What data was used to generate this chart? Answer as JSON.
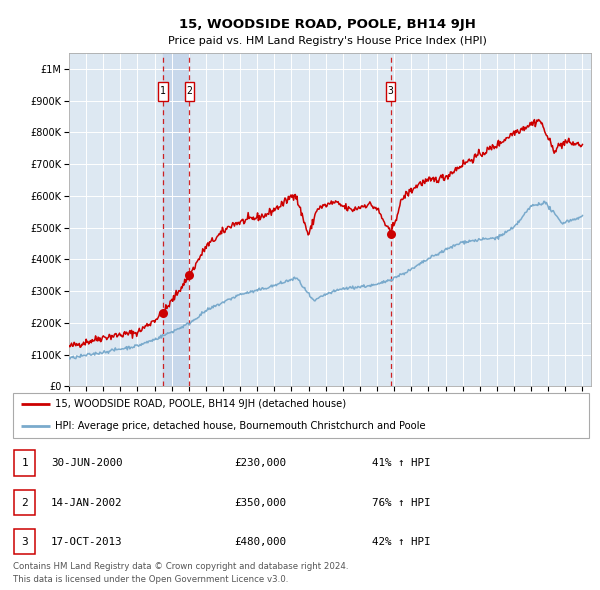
{
  "title": "15, WOODSIDE ROAD, POOLE, BH14 9JH",
  "subtitle": "Price paid vs. HM Land Registry's House Price Index (HPI)",
  "legend_line1": "15, WOODSIDE ROAD, POOLE, BH14 9JH (detached house)",
  "legend_line2": "HPI: Average price, detached house, Bournemouth Christchurch and Poole",
  "footer_line1": "Contains HM Land Registry data © Crown copyright and database right 2024.",
  "footer_line2": "This data is licensed under the Open Government Licence v3.0.",
  "transactions": [
    {
      "num": 1,
      "date": "30-JUN-2000",
      "price": "£230,000",
      "hpi_pct": "41% ↑ HPI",
      "x_year": 2000.5
    },
    {
      "num": 2,
      "date": "14-JAN-2002",
      "price": "£350,000",
      "hpi_pct": "76% ↑ HPI",
      "x_year": 2002.04
    },
    {
      "num": 3,
      "date": "17-OCT-2013",
      "price": "£480,000",
      "hpi_pct": "42% ↑ HPI",
      "x_year": 2013.79
    }
  ],
  "trans_prices": [
    230000,
    350000,
    480000
  ],
  "red_line_color": "#cc0000",
  "blue_line_color": "#7aaacc",
  "plot_bg_color": "#dde8f2",
  "highlight_bg_color": "#c8d8eb",
  "grid_color": "#ffffff",
  "ylim": [
    0,
    1050000
  ],
  "xlim_start": 1995.0,
  "xlim_end": 2025.5,
  "yticks": [
    0,
    100000,
    200000,
    300000,
    400000,
    500000,
    600000,
    700000,
    800000,
    900000,
    1000000
  ],
  "ytick_labels": [
    "£0",
    "£100K",
    "£200K",
    "£300K",
    "£400K",
    "£500K",
    "£600K",
    "£700K",
    "£800K",
    "£900K",
    "£1M"
  ],
  "xticks": [
    1995,
    1996,
    1997,
    1998,
    1999,
    2000,
    2001,
    2002,
    2003,
    2004,
    2005,
    2006,
    2007,
    2008,
    2009,
    2010,
    2011,
    2012,
    2013,
    2014,
    2015,
    2016,
    2017,
    2018,
    2019,
    2020,
    2021,
    2022,
    2023,
    2024,
    2025
  ]
}
